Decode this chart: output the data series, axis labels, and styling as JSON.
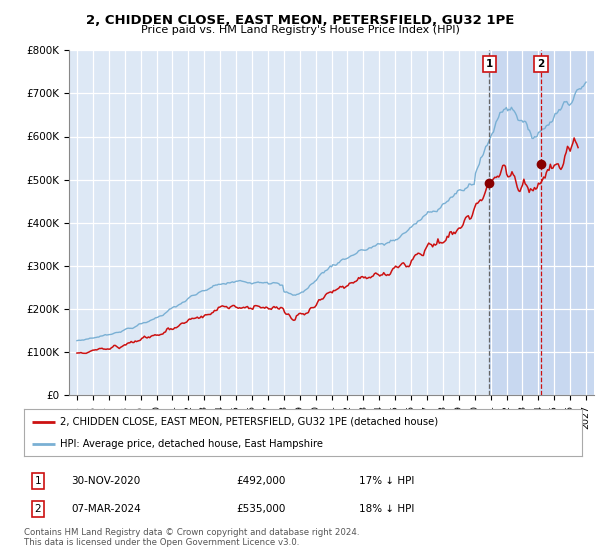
{
  "title": "2, CHIDDEN CLOSE, EAST MEON, PETERSFIELD, GU32 1PE",
  "subtitle": "Price paid vs. HM Land Registry's House Price Index (HPI)",
  "background_color": "#ffffff",
  "grid_color": "#cccccc",
  "plot_bg_color": "#dde8f5",
  "shade_color": "#c8d8f0",
  "red_line_label": "2, CHIDDEN CLOSE, EAST MEON, PETERSFIELD, GU32 1PE (detached house)",
  "blue_line_label": "HPI: Average price, detached house, East Hampshire",
  "transaction1_date": "30-NOV-2020",
  "transaction1_price": "£492,000",
  "transaction1_hpi": "17% ↓ HPI",
  "transaction2_date": "07-MAR-2024",
  "transaction2_price": "£535,000",
  "transaction2_hpi": "18% ↓ HPI",
  "footnote": "Contains HM Land Registry data © Crown copyright and database right 2024.\nThis data is licensed under the Open Government Licence v3.0.",
  "ylim": [
    0,
    800000
  ],
  "yticks": [
    0,
    100000,
    200000,
    300000,
    400000,
    500000,
    600000,
    700000,
    800000
  ],
  "ytick_labels": [
    "£0",
    "£100K",
    "£200K",
    "£300K",
    "£400K",
    "£500K",
    "£600K",
    "£700K",
    "£800K"
  ],
  "xmin": 1995,
  "xmax": 2027,
  "sale1_x": 2020.917,
  "sale1_y": 492000,
  "sale2_x": 2024.167,
  "sale2_y": 535000
}
